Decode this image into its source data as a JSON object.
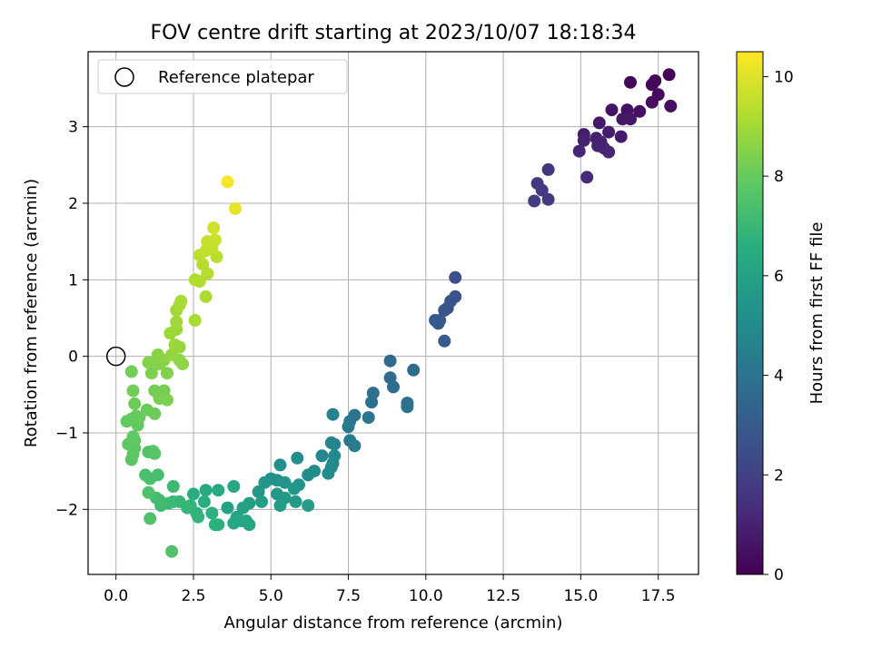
{
  "chart_data": {
    "type": "scatter",
    "title": "FOV centre drift starting at 2023/10/07 18:18:34",
    "xlabel": "Angular distance from reference (arcmin)",
    "ylabel": "Rotation from reference (arcmin)",
    "xlim": [
      -0.9,
      18.8
    ],
    "ylim": [
      -2.85,
      3.98
    ],
    "x_ticks": [
      0,
      2.5,
      5,
      7.5,
      10,
      12.5,
      15,
      17.5
    ],
    "x_tick_labels": [
      "0.0",
      "2.5",
      "5.0",
      "7.5",
      "10.0",
      "12.5",
      "15.0",
      "17.5"
    ],
    "y_ticks": [
      -2,
      -1,
      0,
      1,
      2,
      3
    ],
    "y_tick_labels": [
      "−2",
      "−1",
      "0",
      "1",
      "2",
      "3"
    ],
    "grid": true,
    "legend": {
      "placement": "top-left",
      "entries": [
        "Reference platepar"
      ]
    },
    "reference_point": {
      "x": 0,
      "y": 0,
      "label": "Reference platepar"
    },
    "colorbar": {
      "label": "Hours from first FF file",
      "min": 0,
      "max": 10.5,
      "ticks": [
        0,
        2,
        4,
        6,
        8,
        10
      ],
      "tick_labels": [
        "0",
        "2",
        "4",
        "6",
        "8",
        "10"
      ],
      "colormap": "viridis"
    },
    "points": [
      {
        "x": 17.85,
        "y": 3.68,
        "h": 0.1
      },
      {
        "x": 17.4,
        "y": 3.6,
        "h": 0.15
      },
      {
        "x": 17.3,
        "y": 3.55,
        "h": 0.2
      },
      {
        "x": 16.6,
        "y": 3.58,
        "h": 0.25
      },
      {
        "x": 17.5,
        "y": 3.42,
        "h": 0.3
      },
      {
        "x": 17.3,
        "y": 3.32,
        "h": 0.35
      },
      {
        "x": 17.9,
        "y": 3.27,
        "h": 0.4
      },
      {
        "x": 16.9,
        "y": 3.2,
        "h": 0.45
      },
      {
        "x": 16.5,
        "y": 3.22,
        "h": 0.5
      },
      {
        "x": 16.0,
        "y": 3.22,
        "h": 0.55
      },
      {
        "x": 16.6,
        "y": 3.1,
        "h": 0.6
      },
      {
        "x": 16.35,
        "y": 3.1,
        "h": 0.65
      },
      {
        "x": 15.6,
        "y": 3.05,
        "h": 0.7
      },
      {
        "x": 16.3,
        "y": 2.87,
        "h": 0.75
      },
      {
        "x": 15.9,
        "y": 2.93,
        "h": 0.8
      },
      {
        "x": 15.1,
        "y": 2.9,
        "h": 0.85
      },
      {
        "x": 15.5,
        "y": 2.85,
        "h": 0.9
      },
      {
        "x": 15.1,
        "y": 2.82,
        "h": 0.95
      },
      {
        "x": 15.65,
        "y": 2.8,
        "h": 1.0
      },
      {
        "x": 15.55,
        "y": 2.75,
        "h": 1.0
      },
      {
        "x": 15.75,
        "y": 2.72,
        "h": 1.05
      },
      {
        "x": 15.9,
        "y": 2.67,
        "h": 1.1
      },
      {
        "x": 14.95,
        "y": 2.68,
        "h": 1.1
      },
      {
        "x": 15.2,
        "y": 2.34,
        "h": 1.2
      },
      {
        "x": 13.95,
        "y": 2.44,
        "h": 1.6
      },
      {
        "x": 13.6,
        "y": 2.26,
        "h": 1.7
      },
      {
        "x": 13.75,
        "y": 2.17,
        "h": 1.75
      },
      {
        "x": 13.95,
        "y": 2.05,
        "h": 1.8
      },
      {
        "x": 13.5,
        "y": 2.03,
        "h": 1.85
      },
      {
        "x": 10.95,
        "y": 1.03,
        "h": 2.6
      },
      {
        "x": 10.95,
        "y": 0.78,
        "h": 2.65
      },
      {
        "x": 10.8,
        "y": 0.72,
        "h": 2.7
      },
      {
        "x": 10.7,
        "y": 0.63,
        "h": 2.75
      },
      {
        "x": 10.6,
        "y": 0.6,
        "h": 2.8
      },
      {
        "x": 10.3,
        "y": 0.47,
        "h": 2.85
      },
      {
        "x": 10.45,
        "y": 0.47,
        "h": 2.9
      },
      {
        "x": 10.4,
        "y": 0.43,
        "h": 2.95
      },
      {
        "x": 10.6,
        "y": 0.2,
        "h": 3.0
      },
      {
        "x": 8.85,
        "y": -0.06,
        "h": 3.6
      },
      {
        "x": 9.6,
        "y": -0.18,
        "h": 3.65
      },
      {
        "x": 8.85,
        "y": -0.28,
        "h": 3.7
      },
      {
        "x": 8.95,
        "y": -0.4,
        "h": 3.75
      },
      {
        "x": 8.3,
        "y": -0.48,
        "h": 3.8
      },
      {
        "x": 8.25,
        "y": -0.6,
        "h": 3.85
      },
      {
        "x": 9.4,
        "y": -0.61,
        "h": 3.9
      },
      {
        "x": 9.4,
        "y": -0.66,
        "h": 3.95
      },
      {
        "x": 7.7,
        "y": -0.77,
        "h": 4.0
      },
      {
        "x": 8.15,
        "y": -0.8,
        "h": 4.05
      },
      {
        "x": 7.55,
        "y": -0.85,
        "h": 4.1
      },
      {
        "x": 7.5,
        "y": -0.92,
        "h": 4.15
      },
      {
        "x": 7.55,
        "y": -1.1,
        "h": 4.25
      },
      {
        "x": 7.7,
        "y": -1.17,
        "h": 4.3
      },
      {
        "x": 7.0,
        "y": -0.76,
        "h": 4.6
      },
      {
        "x": 6.95,
        "y": -1.13,
        "h": 4.7
      },
      {
        "x": 7.05,
        "y": -1.15,
        "h": 4.75
      },
      {
        "x": 6.65,
        "y": -1.3,
        "h": 4.8
      },
      {
        "x": 7.05,
        "y": -1.3,
        "h": 4.85
      },
      {
        "x": 7.0,
        "y": -1.4,
        "h": 4.9
      },
      {
        "x": 6.95,
        "y": -1.45,
        "h": 4.95
      },
      {
        "x": 6.85,
        "y": -1.53,
        "h": 5.0
      },
      {
        "x": 6.4,
        "y": -1.5,
        "h": 5.05
      },
      {
        "x": 6.2,
        "y": -1.55,
        "h": 5.1
      },
      {
        "x": 5.85,
        "y": -1.33,
        "h": 5.15
      },
      {
        "x": 5.3,
        "y": -1.42,
        "h": 5.2
      },
      {
        "x": 5.0,
        "y": -1.6,
        "h": 5.3
      },
      {
        "x": 5.2,
        "y": -1.62,
        "h": 5.35
      },
      {
        "x": 5.45,
        "y": -1.65,
        "h": 5.4
      },
      {
        "x": 5.9,
        "y": -1.68,
        "h": 5.45
      },
      {
        "x": 5.75,
        "y": -1.73,
        "h": 5.5
      },
      {
        "x": 4.8,
        "y": -1.65,
        "h": 5.5
      },
      {
        "x": 4.6,
        "y": -1.77,
        "h": 5.55
      },
      {
        "x": 5.2,
        "y": -1.8,
        "h": 5.6
      },
      {
        "x": 5.45,
        "y": -1.85,
        "h": 5.65
      },
      {
        "x": 5.8,
        "y": -1.9,
        "h": 5.7
      },
      {
        "x": 6.2,
        "y": -1.95,
        "h": 5.75
      },
      {
        "x": 4.7,
        "y": -1.9,
        "h": 5.8
      },
      {
        "x": 5.3,
        "y": -1.95,
        "h": 5.85
      },
      {
        "x": 4.3,
        "y": -1.92,
        "h": 5.9
      },
      {
        "x": 4.1,
        "y": -1.98,
        "h": 5.95
      },
      {
        "x": 3.6,
        "y": -1.98,
        "h": 6.0
      },
      {
        "x": 3.9,
        "y": -2.1,
        "h": 6.05
      },
      {
        "x": 4.2,
        "y": -2.15,
        "h": 6.1
      },
      {
        "x": 4.3,
        "y": -2.2,
        "h": 6.15
      },
      {
        "x": 4.05,
        "y": -2.15,
        "h": 6.2
      },
      {
        "x": 3.8,
        "y": -2.18,
        "h": 6.25
      },
      {
        "x": 3.8,
        "y": -1.7,
        "h": 6.3
      },
      {
        "x": 3.3,
        "y": -1.75,
        "h": 6.35
      },
      {
        "x": 2.9,
        "y": -1.75,
        "h": 6.4
      },
      {
        "x": 2.5,
        "y": -1.8,
        "h": 6.5
      },
      {
        "x": 2.85,
        "y": -1.9,
        "h": 6.55
      },
      {
        "x": 3.2,
        "y": -2.2,
        "h": 6.6
      },
      {
        "x": 3.3,
        "y": -2.2,
        "h": 6.65
      },
      {
        "x": 3.1,
        "y": -2.05,
        "h": 6.7
      },
      {
        "x": 2.6,
        "y": -2.05,
        "h": 6.75
      },
      {
        "x": 2.65,
        "y": -2.1,
        "h": 6.8
      },
      {
        "x": 2.4,
        "y": -1.95,
        "h": 6.85
      },
      {
        "x": 2.3,
        "y": -1.98,
        "h": 6.9
      },
      {
        "x": 2.05,
        "y": -1.9,
        "h": 6.95
      },
      {
        "x": 1.85,
        "y": -1.9,
        "h": 7.0
      },
      {
        "x": 1.7,
        "y": -1.92,
        "h": 7.05
      },
      {
        "x": 1.85,
        "y": -1.7,
        "h": 7.1
      },
      {
        "x": 1.45,
        "y": -1.95,
        "h": 7.15
      },
      {
        "x": 1.4,
        "y": -1.88,
        "h": 7.2
      },
      {
        "x": 1.3,
        "y": -1.85,
        "h": 7.25
      },
      {
        "x": 1.35,
        "y": -1.55,
        "h": 7.3
      },
      {
        "x": 1.1,
        "y": -1.6,
        "h": 7.35
      },
      {
        "x": 0.95,
        "y": -1.55,
        "h": 7.4
      },
      {
        "x": 1.05,
        "y": -1.78,
        "h": 7.45
      },
      {
        "x": 1.1,
        "y": -2.12,
        "h": 7.5
      },
      {
        "x": 1.8,
        "y": -2.55,
        "h": 7.55
      },
      {
        "x": 1.05,
        "y": -1.25,
        "h": 7.6
      },
      {
        "x": 1.25,
        "y": -1.27,
        "h": 7.65
      },
      {
        "x": 1.2,
        "y": -1.24,
        "h": 7.7
      },
      {
        "x": 0.5,
        "y": -1.35,
        "h": 7.75
      },
      {
        "x": 0.55,
        "y": -1.28,
        "h": 7.8
      },
      {
        "x": 0.6,
        "y": -1.2,
        "h": 7.8
      },
      {
        "x": 0.4,
        "y": -1.15,
        "h": 7.85
      },
      {
        "x": 0.6,
        "y": -1.1,
        "h": 7.85
      },
      {
        "x": 0.55,
        "y": -1.05,
        "h": 7.9
      },
      {
        "x": 0.7,
        "y": -0.9,
        "h": 7.9
      },
      {
        "x": 0.35,
        "y": -0.85,
        "h": 7.95
      },
      {
        "x": 0.5,
        "y": -0.82,
        "h": 7.95
      },
      {
        "x": 0.65,
        "y": -0.78,
        "h": 8.0
      },
      {
        "x": 0.75,
        "y": -0.8,
        "h": 8.0
      },
      {
        "x": 1.0,
        "y": -0.7,
        "h": 8.05
      },
      {
        "x": 1.25,
        "y": -0.75,
        "h": 8.1
      },
      {
        "x": 0.6,
        "y": -0.62,
        "h": 8.1
      },
      {
        "x": 0.55,
        "y": -0.45,
        "h": 8.15
      },
      {
        "x": 0.5,
        "y": -0.2,
        "h": 8.2
      },
      {
        "x": 1.25,
        "y": -0.45,
        "h": 8.2
      },
      {
        "x": 1.55,
        "y": -0.45,
        "h": 8.25
      },
      {
        "x": 1.4,
        "y": -0.55,
        "h": 8.3
      },
      {
        "x": 1.65,
        "y": -0.57,
        "h": 8.35
      },
      {
        "x": 1.15,
        "y": -0.22,
        "h": 8.4
      },
      {
        "x": 1.65,
        "y": -0.22,
        "h": 8.45
      },
      {
        "x": 1.05,
        "y": -0.08,
        "h": 8.5
      },
      {
        "x": 1.4,
        "y": -0.1,
        "h": 8.55
      },
      {
        "x": 1.35,
        "y": 0.02,
        "h": 8.6
      },
      {
        "x": 1.55,
        "y": -0.05,
        "h": 8.6
      },
      {
        "x": 2.05,
        "y": -0.05,
        "h": 8.65
      },
      {
        "x": 2.15,
        "y": -0.1,
        "h": 8.7
      },
      {
        "x": 1.8,
        "y": 0.02,
        "h": 8.75
      },
      {
        "x": 2.05,
        "y": 0.12,
        "h": 8.8
      },
      {
        "x": 1.9,
        "y": 0.15,
        "h": 8.85
      },
      {
        "x": 1.75,
        "y": 0.3,
        "h": 8.9
      },
      {
        "x": 1.95,
        "y": 0.35,
        "h": 8.9
      },
      {
        "x": 1.95,
        "y": 0.45,
        "h": 8.95
      },
      {
        "x": 1.95,
        "y": 0.6,
        "h": 9.0
      },
      {
        "x": 2.05,
        "y": 0.67,
        "h": 9.05
      },
      {
        "x": 2.1,
        "y": 0.72,
        "h": 9.1
      },
      {
        "x": 2.55,
        "y": 0.47,
        "h": 9.1
      },
      {
        "x": 2.9,
        "y": 0.78,
        "h": 9.15
      },
      {
        "x": 2.55,
        "y": 1.0,
        "h": 9.2
      },
      {
        "x": 2.7,
        "y": 0.98,
        "h": 9.25
      },
      {
        "x": 2.95,
        "y": 1.08,
        "h": 9.3
      },
      {
        "x": 2.8,
        "y": 1.2,
        "h": 9.35
      },
      {
        "x": 3.25,
        "y": 1.3,
        "h": 9.4
      },
      {
        "x": 2.7,
        "y": 1.32,
        "h": 9.45
      },
      {
        "x": 2.9,
        "y": 1.38,
        "h": 9.5
      },
      {
        "x": 3.1,
        "y": 1.42,
        "h": 9.55
      },
      {
        "x": 2.95,
        "y": 1.5,
        "h": 9.6
      },
      {
        "x": 3.2,
        "y": 1.52,
        "h": 9.65
      },
      {
        "x": 3.15,
        "y": 1.68,
        "h": 9.75
      },
      {
        "x": 3.85,
        "y": 1.93,
        "h": 10.1
      },
      {
        "x": 3.6,
        "y": 2.28,
        "h": 10.4
      }
    ]
  }
}
